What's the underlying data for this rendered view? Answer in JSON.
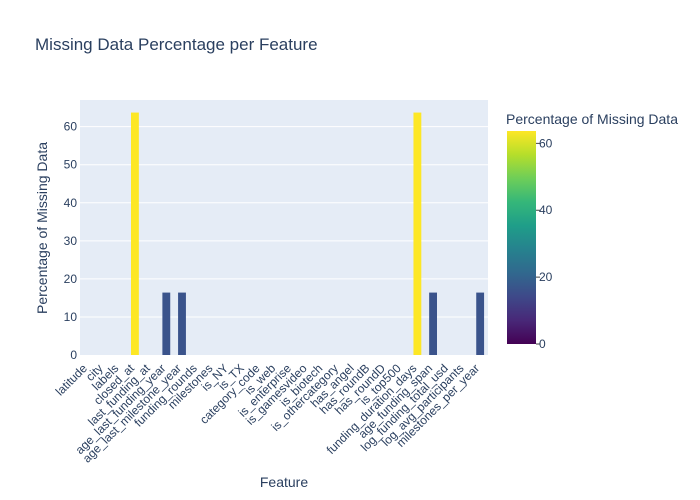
{
  "chart_data": {
    "type": "bar",
    "title": "Missing Data Percentage per Feature",
    "xlabel": "Feature",
    "ylabel": "Percentage of Missing Data",
    "ylim": [
      0,
      67
    ],
    "yticks": [
      0,
      10,
      20,
      30,
      40,
      50,
      60
    ],
    "categories": [
      "latitude",
      "city",
      "labels",
      "closed_at",
      "last_funding_at",
      "age_last_funding_year",
      "age_last_milestone_year",
      "funding_rounds",
      "milestones",
      "is_NY",
      "is_TX",
      "category_code",
      "is_web",
      "is_enterprise",
      "is_gamesvideo",
      "is_biotech",
      "is_othercategory",
      "has_angel",
      "has_roundB",
      "has_roundD",
      "is_top500",
      "funding_duration_days",
      "age_funding_span",
      "log_funding_total_usd",
      "log_avg_participants",
      "milestones_per_year"
    ],
    "values": [
      0,
      0,
      0,
      63.7,
      0,
      16.4,
      16.4,
      0,
      0,
      0,
      0,
      0,
      0,
      0,
      0,
      0,
      0,
      0,
      0,
      0,
      0,
      63.7,
      16.4,
      0,
      0,
      16.4
    ],
    "colorbar": {
      "title": "Percentage of Missing Data",
      "colorscale": "Viridis",
      "range": [
        0,
        63.7
      ],
      "ticks": [
        0,
        20,
        40,
        60
      ]
    },
    "background_color": "#e5ecf6",
    "grid": true
  }
}
